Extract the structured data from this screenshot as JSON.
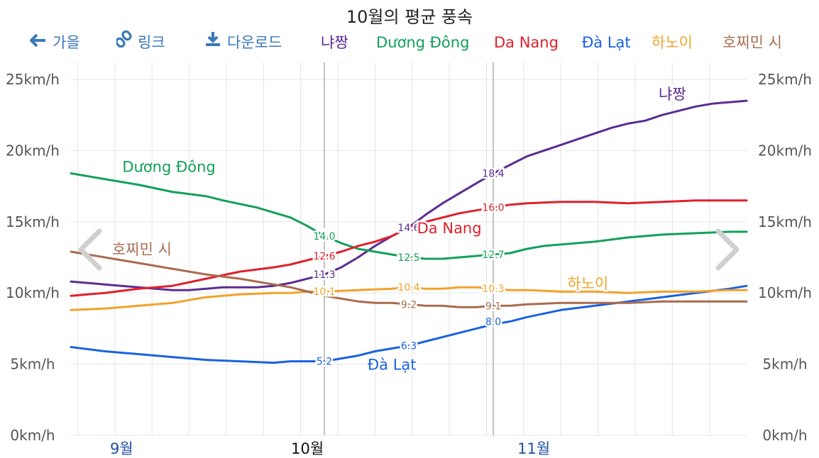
{
  "title": "10월의 평균 풍속",
  "toolbar": {
    "back_label": "가을",
    "link_label": "링크",
    "download_label": "다운로드"
  },
  "legend": [
    {
      "name": "냐짱",
      "color": "#5b2c91"
    },
    {
      "name": "Dương Đông",
      "color": "#12a05a"
    },
    {
      "name": "Da Nang",
      "color": "#e0202c"
    },
    {
      "name": "Đà Lạt",
      "color": "#1a62e0"
    },
    {
      "name": "하노이",
      "color": "#f2a22a"
    },
    {
      "name": "호찌민 시",
      "color": "#a86b4f"
    }
  ],
  "toolbar_color": "#3a78b8",
  "chart_data": {
    "type": "line",
    "title": "10월의 평균 풍속",
    "unit": "km/h",
    "ylim": [
      0,
      25
    ],
    "yticks": [
      "0km/h",
      "5km/h",
      "10km/h",
      "15km/h",
      "20km/h",
      "25km/h"
    ],
    "ytick_values": [
      0,
      5,
      10,
      15,
      20,
      25
    ],
    "xlim": [
      -0.65,
      1.35
    ],
    "months": [
      {
        "label": "9월",
        "x": -0.5
      },
      {
        "label": "10월",
        "x": 0.05
      },
      {
        "label": "11월",
        "x": 0.72
      }
    ],
    "grid": true,
    "series": [
      {
        "name": "냐짱",
        "color": "#5b2c91",
        "x": [
          -0.65,
          -0.55,
          -0.45,
          -0.35,
          -0.3,
          -0.25,
          -0.2,
          -0.1,
          -0.05,
          0,
          0.05,
          0.1,
          0.15,
          0.2,
          0.25,
          0.3,
          0.35,
          0.4,
          0.45,
          0.5,
          0.55,
          0.6,
          0.65,
          0.7,
          0.75,
          0.8,
          0.85,
          0.9,
          0.95,
          1,
          1.05,
          1.1,
          1.15,
          1.2,
          1.25,
          1.3,
          1.35
        ],
        "y": [
          10.8,
          10.6,
          10.4,
          10.2,
          10.2,
          10.3,
          10.4,
          10.4,
          10.5,
          10.7,
          11.0,
          11.3,
          11.8,
          12.5,
          13.3,
          14.0,
          14.6,
          15.5,
          16.3,
          17.0,
          17.7,
          18.4,
          19.0,
          19.6,
          20.0,
          20.4,
          20.8,
          21.2,
          21.6,
          21.9,
          22.1,
          22.5,
          22.8,
          23.1,
          23.3,
          23.4,
          23.5
        ]
      },
      {
        "name": "Dương Đông",
        "color": "#12a05a",
        "x": [
          -0.65,
          -0.55,
          -0.45,
          -0.35,
          -0.25,
          -0.2,
          -0.1,
          0,
          0.05,
          0.1,
          0.15,
          0.2,
          0.25,
          0.3,
          0.35,
          0.4,
          0.45,
          0.5,
          0.55,
          0.6,
          0.65,
          0.7,
          0.75,
          0.8,
          0.9,
          1,
          1.1,
          1.2,
          1.3,
          1.35
        ],
        "y": [
          18.4,
          18.0,
          17.6,
          17.1,
          16.8,
          16.5,
          16.0,
          15.3,
          14.7,
          14.0,
          13.5,
          13.1,
          12.9,
          12.7,
          12.5,
          12.4,
          12.4,
          12.5,
          12.6,
          12.7,
          12.8,
          13.1,
          13.3,
          13.4,
          13.6,
          13.9,
          14.1,
          14.2,
          14.3,
          14.3
        ]
      },
      {
        "name": "Da Nang",
        "color": "#e0202c",
        "x": [
          -0.65,
          -0.55,
          -0.45,
          -0.35,
          -0.25,
          -0.15,
          -0.05,
          0,
          0.05,
          0.1,
          0.15,
          0.2,
          0.25,
          0.3,
          0.35,
          0.4,
          0.45,
          0.5,
          0.55,
          0.6,
          0.65,
          0.7,
          0.8,
          0.9,
          1,
          1.1,
          1.2,
          1.3,
          1.35
        ],
        "y": [
          9.8,
          10.0,
          10.3,
          10.5,
          11.0,
          11.5,
          11.8,
          12.0,
          12.3,
          12.6,
          12.9,
          13.3,
          13.6,
          14.0,
          14.6,
          15.0,
          15.3,
          15.6,
          15.8,
          16.0,
          16.2,
          16.3,
          16.4,
          16.4,
          16.3,
          16.4,
          16.5,
          16.5,
          16.5
        ]
      },
      {
        "name": "Đà Lạt",
        "color": "#1a62e0",
        "x": [
          -0.65,
          -0.55,
          -0.45,
          -0.35,
          -0.25,
          -0.15,
          -0.05,
          0,
          0.05,
          0.1,
          0.15,
          0.2,
          0.25,
          0.3,
          0.35,
          0.4,
          0.45,
          0.5,
          0.55,
          0.6,
          0.65,
          0.7,
          0.8,
          0.9,
          1,
          1.1,
          1.2,
          1.3,
          1.35
        ],
        "y": [
          6.2,
          5.9,
          5.7,
          5.5,
          5.3,
          5.2,
          5.1,
          5.2,
          5.2,
          5.2,
          5.4,
          5.6,
          5.9,
          6.1,
          6.3,
          6.6,
          6.9,
          7.2,
          7.5,
          7.8,
          8.0,
          8.3,
          8.8,
          9.1,
          9.4,
          9.7,
          10.0,
          10.3,
          10.5
        ]
      },
      {
        "name": "하노이",
        "color": "#f2a22a",
        "x": [
          -0.65,
          -0.55,
          -0.45,
          -0.35,
          -0.25,
          -0.15,
          -0.05,
          0,
          0.05,
          0.1,
          0.2,
          0.3,
          0.35,
          0.4,
          0.45,
          0.5,
          0.55,
          0.6,
          0.65,
          0.7,
          0.8,
          0.9,
          1,
          1.1,
          1.2,
          1.3,
          1.35
        ],
        "y": [
          8.8,
          8.9,
          9.1,
          9.3,
          9.7,
          9.9,
          10.0,
          10.0,
          10.1,
          10.1,
          10.2,
          10.3,
          10.4,
          10.3,
          10.3,
          10.4,
          10.4,
          10.3,
          10.2,
          10.2,
          10.1,
          10.1,
          10.0,
          10.1,
          10.1,
          10.2,
          10.2
        ]
      },
      {
        "name": "호찌민 시",
        "color": "#a86b4f",
        "x": [
          -0.65,
          -0.55,
          -0.45,
          -0.35,
          -0.25,
          -0.15,
          -0.05,
          0,
          0.05,
          0.1,
          0.15,
          0.2,
          0.25,
          0.3,
          0.35,
          0.4,
          0.45,
          0.5,
          0.55,
          0.6,
          0.65,
          0.7,
          0.8,
          0.9,
          1,
          1.1,
          1.2,
          1.3,
          1.35
        ],
        "y": [
          12.9,
          12.5,
          12.1,
          11.7,
          11.3,
          11.0,
          10.6,
          10.4,
          10.1,
          9.8,
          9.6,
          9.4,
          9.3,
          9.3,
          9.2,
          9.1,
          9.1,
          9.0,
          9.0,
          9.1,
          9.1,
          9.2,
          9.3,
          9.3,
          9.3,
          9.4,
          9.4,
          9.4,
          9.4
        ]
      }
    ],
    "data_labels": [
      {
        "series": "냐짱",
        "x": 0.1,
        "y": 11.3,
        "text": "11.3"
      },
      {
        "series": "냐짱",
        "x": 0.35,
        "y": 14.6,
        "text": "14.6"
      },
      {
        "series": "냐짱",
        "x": 0.6,
        "y": 18.4,
        "text": "18.4"
      },
      {
        "series": "Dương Đông",
        "x": 0.1,
        "y": 14.0,
        "text": "14.0"
      },
      {
        "series": "Dương Đông",
        "x": 0.35,
        "y": 12.5,
        "text": "12.5"
      },
      {
        "series": "Dương Đông",
        "x": 0.6,
        "y": 12.7,
        "text": "12.7"
      },
      {
        "series": "Da Nang",
        "x": 0.1,
        "y": 12.6,
        "text": "12.6"
      },
      {
        "series": "Da Nang",
        "x": 0.6,
        "y": 16.0,
        "text": "16.0"
      },
      {
        "series": "Đà Lạt",
        "x": 0.1,
        "y": 5.2,
        "text": "5.2"
      },
      {
        "series": "Đà Lạt",
        "x": 0.35,
        "y": 6.3,
        "text": "6.3"
      },
      {
        "series": "Đà Lạt",
        "x": 0.6,
        "y": 8.0,
        "text": "8.0"
      },
      {
        "series": "하노이",
        "x": 0.1,
        "y": 10.1,
        "text": "10.1"
      },
      {
        "series": "하노이",
        "x": 0.35,
        "y": 10.4,
        "text": "10.4"
      },
      {
        "series": "하노이",
        "x": 0.6,
        "y": 10.3,
        "text": "10.3"
      },
      {
        "series": "호찌민 시",
        "x": 0.35,
        "y": 9.2,
        "text": "9.2"
      },
      {
        "series": "호찌민 시",
        "x": 0.6,
        "y": 9.1,
        "text": "9.1"
      }
    ],
    "series_labels": [
      {
        "series": "냐짱",
        "x": 1.13,
        "y": 23.6,
        "text": "냐짱"
      },
      {
        "series": "Dương Đông",
        "x": -0.36,
        "y": 18.5,
        "text": "Dương Đông"
      },
      {
        "series": "Da Nang",
        "x": 0.47,
        "y": 14.2,
        "text": "Da Nang"
      },
      {
        "series": "Đà Lạt",
        "x": 0.3,
        "y": 4.6,
        "text": "Đà Lạt"
      },
      {
        "series": "하노이",
        "x": 0.88,
        "y": 10.3,
        "text": "하노이"
      },
      {
        "series": "호찌민 시",
        "x": -0.44,
        "y": 12.7,
        "text": "호찌민 시"
      }
    ],
    "month_dividers": [
      0.1,
      0.6
    ],
    "minor_grid_x": [
      -0.63,
      -0.52,
      -0.41,
      -0.3,
      -0.19,
      -0.08,
      0.03,
      0.14,
      0.25,
      0.36,
      0.47,
      0.58,
      0.69,
      0.8,
      0.91,
      1.02,
      1.13,
      1.24
    ]
  }
}
